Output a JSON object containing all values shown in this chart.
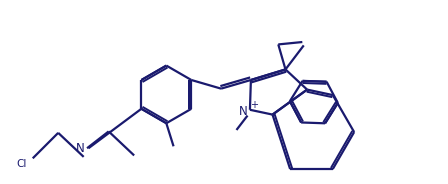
{
  "line_color": "#1a1a6e",
  "bg_color": "#ffffff",
  "line_width": 1.6,
  "figsize": [
    4.48,
    1.84
  ],
  "dpi": 100,
  "xlim": [
    0,
    9.0
  ],
  "ylim": [
    0,
    3.8
  ]
}
